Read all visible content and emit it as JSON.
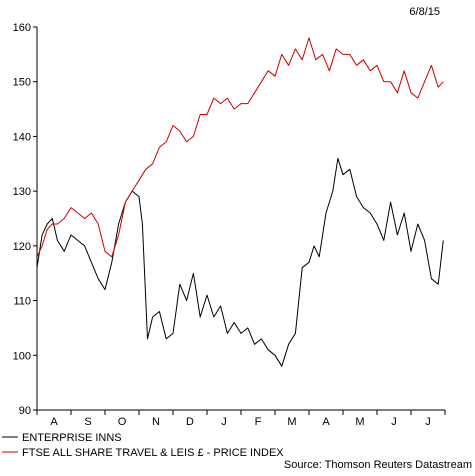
{
  "date_stamp": "6/8/15",
  "source": "Source: Thomson Reuters Datastream",
  "chart_data": {
    "type": "line",
    "title": "",
    "xlabel": "",
    "ylabel": "",
    "ylim": [
      90,
      160
    ],
    "yticks": [
      90,
      100,
      110,
      120,
      130,
      140,
      150,
      160
    ],
    "xlim": [
      0,
      12
    ],
    "x_tick_labels": [
      "A",
      "S",
      "O",
      "N",
      "D",
      "J",
      "F",
      "M",
      "A",
      "M",
      "J",
      "J"
    ],
    "grid": false,
    "legend_position": "bottom-left",
    "series": [
      {
        "name": "ENTERPRISE INNS",
        "color": "#000000",
        "x": [
          0.0,
          0.15,
          0.3,
          0.45,
          0.6,
          0.8,
          1.0,
          1.2,
          1.4,
          1.6,
          1.8,
          2.0,
          2.2,
          2.4,
          2.6,
          2.8,
          3.0,
          3.1,
          3.25,
          3.4,
          3.6,
          3.8,
          4.0,
          4.2,
          4.4,
          4.6,
          4.8,
          5.0,
          5.2,
          5.4,
          5.6,
          5.8,
          6.0,
          6.2,
          6.4,
          6.6,
          6.8,
          7.0,
          7.2,
          7.4,
          7.6,
          7.8,
          8.0,
          8.15,
          8.3,
          8.5,
          8.7,
          8.85,
          9.0,
          9.2,
          9.4,
          9.6,
          9.8,
          10.0,
          10.2,
          10.4,
          10.6,
          10.8,
          11.0,
          11.2,
          11.4,
          11.6,
          11.8,
          11.95
        ],
        "values": [
          116,
          122,
          124,
          125,
          121,
          119,
          122,
          121,
          120,
          117,
          114,
          112,
          117,
          124,
          128,
          130,
          129,
          124,
          103,
          107,
          108,
          103,
          104,
          113,
          110,
          115,
          107,
          111,
          107,
          109,
          104,
          106,
          104,
          105,
          102,
          103,
          101,
          100,
          98,
          102,
          104,
          116,
          117,
          120,
          118,
          126,
          130,
          136,
          133,
          134,
          129,
          127,
          126,
          124,
          121,
          128,
          122,
          126,
          119,
          124,
          121,
          114,
          113,
          121
        ]
      },
      {
        "name": "FTSE ALL SHARE TRAVEL & LEIS £ - PRICE INDEX",
        "color": "#cc0000",
        "x": [
          0.0,
          0.15,
          0.3,
          0.45,
          0.6,
          0.8,
          1.0,
          1.2,
          1.4,
          1.6,
          1.8,
          2.0,
          2.2,
          2.4,
          2.6,
          2.8,
          3.0,
          3.2,
          3.4,
          3.6,
          3.8,
          4.0,
          4.2,
          4.4,
          4.6,
          4.8,
          5.0,
          5.2,
          5.4,
          5.6,
          5.8,
          6.0,
          6.2,
          6.4,
          6.6,
          6.8,
          7.0,
          7.2,
          7.4,
          7.6,
          7.8,
          8.0,
          8.2,
          8.4,
          8.6,
          8.8,
          9.0,
          9.2,
          9.4,
          9.6,
          9.8,
          10.0,
          10.2,
          10.4,
          10.6,
          10.8,
          11.0,
          11.2,
          11.4,
          11.6,
          11.8,
          11.95
        ],
        "values": [
          118,
          120,
          123,
          124,
          124,
          125,
          127,
          126,
          125,
          126,
          124,
          119,
          118,
          122,
          128,
          130,
          132,
          134,
          135,
          138,
          139,
          142,
          141,
          139,
          140,
          144,
          144,
          147,
          146,
          147,
          145,
          146,
          146,
          148,
          150,
          152,
          151,
          155,
          153,
          156,
          154,
          158,
          154,
          155,
          152,
          156,
          155,
          155,
          153,
          154,
          152,
          153,
          150,
          150,
          148,
          152,
          148,
          147,
          150,
          153,
          149,
          150
        ]
      }
    ]
  }
}
